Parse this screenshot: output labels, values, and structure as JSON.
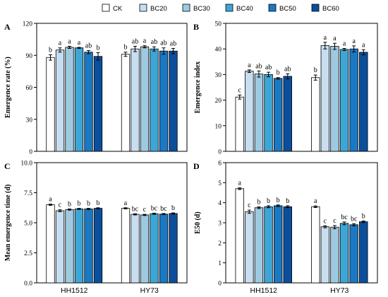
{
  "legend": [
    {
      "label": "CK",
      "color": "#ffffff"
    },
    {
      "label": "BC20",
      "color": "#c6def0"
    },
    {
      "label": "BC30",
      "color": "#9ecae1"
    },
    {
      "label": "BC40",
      "color": "#3ea6d6"
    },
    {
      "label": "BC50",
      "color": "#1b78c2"
    },
    {
      "label": "BC60",
      "color": "#0b4f9c"
    }
  ],
  "chart_data": [
    {
      "panel": "A",
      "type": "bar",
      "ylabel": "Emergence rate (%)",
      "categories": [
        "HH1512",
        "HY73"
      ],
      "ylim": [
        0,
        120
      ],
      "yticks": [
        "0",
        "30",
        "60",
        "90",
        "120"
      ],
      "series": [
        {
          "name": "CK",
          "values": [
            88,
            91
          ],
          "err": [
            2.5,
            2.0
          ],
          "sig": [
            "b",
            "b"
          ]
        },
        {
          "name": "BC20",
          "values": [
            95,
            96
          ],
          "err": [
            2.0,
            2.5
          ],
          "sig": [
            "a",
            "ab"
          ]
        },
        {
          "name": "BC30",
          "values": [
            97.5,
            98
          ],
          "err": [
            1.0,
            1.0
          ],
          "sig": [
            "a",
            "a"
          ]
        },
        {
          "name": "BC40",
          "values": [
            97,
            96
          ],
          "err": [
            0.5,
            2.0
          ],
          "sig": [
            "a",
            "ab"
          ]
        },
        {
          "name": "BC50",
          "values": [
            93,
            94
          ],
          "err": [
            1.5,
            3.0
          ],
          "sig": [
            "ab",
            "ab"
          ]
        },
        {
          "name": "BC60",
          "values": [
            89,
            94
          ],
          "err": [
            3.5,
            2.5
          ],
          "sig": [
            "b",
            "ab"
          ]
        }
      ]
    },
    {
      "panel": "B",
      "type": "bar",
      "ylabel": "Emergence index",
      "categories": [
        "HH1512",
        "HY73"
      ],
      "ylim": [
        0,
        50
      ],
      "yticks": [
        "0",
        "10",
        "20",
        "30",
        "40",
        "50"
      ],
      "series": [
        {
          "name": "CK",
          "values": [
            21.2,
            28.8
          ],
          "err": [
            0.8,
            1.0
          ],
          "sig": [
            "c",
            "b"
          ]
        },
        {
          "name": "BC20",
          "values": [
            31.3,
            41.3
          ],
          "err": [
            0.5,
            1.3
          ],
          "sig": [
            "a",
            "a"
          ]
        },
        {
          "name": "BC30",
          "values": [
            30.2,
            41.0
          ],
          "err": [
            1.2,
            1.2
          ],
          "sig": [
            "ab",
            "a"
          ]
        },
        {
          "name": "BC40",
          "values": [
            30.0,
            39.8
          ],
          "err": [
            0.9,
            0.4
          ],
          "sig": [
            "ab",
            "a"
          ]
        },
        {
          "name": "BC50",
          "values": [
            28.5,
            40.0
          ],
          "err": [
            0.3,
            1.2
          ],
          "sig": [
            "b",
            "a"
          ]
        },
        {
          "name": "BC60",
          "values": [
            29.3,
            38.7
          ],
          "err": [
            1.0,
            1.0
          ],
          "sig": [
            "ab",
            "a"
          ]
        }
      ]
    },
    {
      "panel": "C",
      "type": "bar",
      "ylabel": "Mean emergence time (d)",
      "categories": [
        "HH1512",
        "HY73"
      ],
      "ylim": [
        0,
        10
      ],
      "yticks": [
        "0.0",
        "2.5",
        "5.0",
        "7.5",
        "10.0"
      ],
      "series": [
        {
          "name": "CK",
          "values": [
            6.5,
            6.2
          ],
          "err": [
            0.05,
            0.05
          ],
          "sig": [
            "a",
            "a"
          ]
        },
        {
          "name": "BC20",
          "values": [
            6.0,
            5.7
          ],
          "err": [
            0.08,
            0.05
          ],
          "sig": [
            "c",
            "bc"
          ]
        },
        {
          "name": "BC30",
          "values": [
            6.1,
            5.65
          ],
          "err": [
            0.05,
            0.05
          ],
          "sig": [
            "b",
            "c"
          ]
        },
        {
          "name": "BC40",
          "values": [
            6.15,
            5.75
          ],
          "err": [
            0.05,
            0.05
          ],
          "sig": [
            "b",
            "bc"
          ]
        },
        {
          "name": "BC50",
          "values": [
            6.15,
            5.72
          ],
          "err": [
            0.05,
            0.05
          ],
          "sig": [
            "b",
            "bc"
          ]
        },
        {
          "name": "BC60",
          "values": [
            6.2,
            5.77
          ],
          "err": [
            0.05,
            0.05
          ],
          "sig": [
            "b",
            "b"
          ]
        }
      ]
    },
    {
      "panel": "D",
      "type": "bar",
      "ylabel": "E50 (d)",
      "categories": [
        "HH1512",
        "HY73"
      ],
      "ylim": [
        0,
        6
      ],
      "yticks": [
        "0",
        "1",
        "2",
        "3",
        "4",
        "5",
        "6"
      ],
      "series": [
        {
          "name": "CK",
          "values": [
            4.7,
            3.8
          ],
          "err": [
            0.04,
            0.04
          ],
          "sig": [
            "a",
            "a"
          ]
        },
        {
          "name": "BC20",
          "values": [
            3.55,
            2.8
          ],
          "err": [
            0.08,
            0.05
          ],
          "sig": [
            "c",
            "c"
          ]
        },
        {
          "name": "BC30",
          "values": [
            3.75,
            2.78
          ],
          "err": [
            0.04,
            0.08
          ],
          "sig": [
            "b",
            "c"
          ]
        },
        {
          "name": "BC40",
          "values": [
            3.8,
            2.97
          ],
          "err": [
            0.05,
            0.07
          ],
          "sig": [
            "b",
            "bc"
          ]
        },
        {
          "name": "BC50",
          "values": [
            3.85,
            2.9
          ],
          "err": [
            0.04,
            0.05
          ],
          "sig": [
            "b",
            "bc"
          ]
        },
        {
          "name": "BC60",
          "values": [
            3.8,
            3.05
          ],
          "err": [
            0.05,
            0.04
          ],
          "sig": [
            "b",
            "b"
          ]
        }
      ]
    }
  ]
}
